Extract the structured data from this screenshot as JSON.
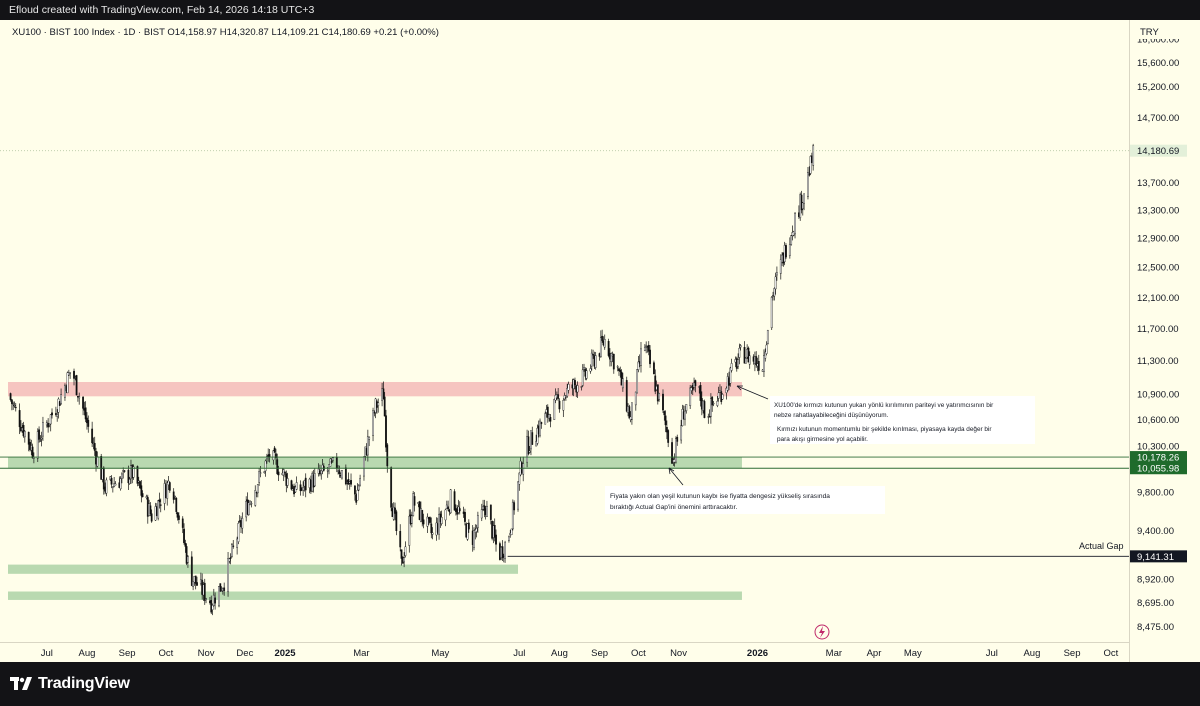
{
  "header": {
    "caption": "Efloud created with TradingView.com, Feb 14, 2026 14:18 UTC+3"
  },
  "footer": {
    "brand": "TradingView"
  },
  "legend": {
    "ohlc_text": "XU100 · BIST 100 Index · 1D · BIST  O14,158.97  H14,320.87  L14,109.21  C14,180.69  +0.21 (+0.00%)"
  },
  "currency": "TRY",
  "colors": {
    "background": "#fffeea",
    "candle": "#111111",
    "red_zone": "#f6c5c0",
    "green_zone": "#b9d9b0",
    "green_label": "#1f6b2c",
    "price_label": "#e3f0d9"
  },
  "annotations": {
    "red_note_1": "XU100'de kırmızı kutunun yukarı yönlü kırılımının pariteyi ve yatırımcısının bir",
    "red_note_2": "nebze rahatlayabileceğini düşünüyorum.",
    "red_note_3": "Kırmızı kutunun momentumlu bir şekilde kırılması, piyasaya kayda değer bir",
    "red_note_4": "para akışı girmesine yol açabilir.",
    "green_note_1": "Fiyata yakın olan yeşil kutunun kaybı ise fiyatta dengesiz yükseliş sırasında",
    "green_note_2": "bıraktığı Actual Gap'ini önemini arttıracaktır.",
    "gap_label": "Actual Gap"
  },
  "chart_data": {
    "type": "candlestick",
    "symbol": "XU100",
    "title": "XU100 · BIST 100 Index · 1D · BIST",
    "ohlc": {
      "open": 14158.97,
      "high": 14320.87,
      "low": 14109.21,
      "close": 14180.69,
      "change": "+0.21 (+0.00%)"
    },
    "y_axis_ticks": [
      "16,000.00",
      "15,600.00",
      "15,200.00",
      "14,700.00",
      "14,180.69",
      "13,700.00",
      "13,300.00",
      "12,900.00",
      "12,500.00",
      "12,100.00",
      "11,700.00",
      "11,300.00",
      "10,900.00",
      "10,600.00",
      "10,300.00",
      "10,178.26",
      "10,055.98",
      "9,800.00",
      "9,400.00",
      "9,141.31",
      "8,920.00",
      "8,695.00",
      "8,475.00"
    ],
    "y_axis_scale": "log",
    "y_range": [
      8350,
      16300
    ],
    "x_axis_ticks": [
      "Jul",
      "Aug",
      "Sep",
      "Oct",
      "Nov",
      "Dec",
      "2025",
      "Mar",
      "May",
      "Jul",
      "Aug",
      "Sep",
      "Oct",
      "Nov",
      "2026",
      "Mar",
      "Apr",
      "May",
      "Jul",
      "Aug",
      "Sep",
      "Oct"
    ],
    "x_range": [
      "2024-06-01",
      "2026-10-15"
    ],
    "price_line": 14180.69,
    "levels": [
      {
        "name": "green_box_top",
        "value": 10178.26
      },
      {
        "name": "green_box_bottom",
        "value": 10055.98
      },
      {
        "name": "actual_gap",
        "value": 9141.31
      }
    ],
    "zones": [
      {
        "name": "red",
        "from": "2024-06-01",
        "to": "2025-12-20",
        "low": 10870,
        "high": 11040
      },
      {
        "name": "green_near",
        "from": "2024-06-01",
        "to": "2025-12-20",
        "low": 10055.98,
        "high": 10178.26
      },
      {
        "name": "green_low_1",
        "from": "2024-06-01",
        "to": "2025-06-30",
        "low": 8970,
        "high": 9060
      },
      {
        "name": "green_low_2",
        "from": "2024-06-01",
        "to": "2025-12-20",
        "low": 8720,
        "high": 8800
      }
    ],
    "close_path": [
      [
        "2024-06-01",
        10900
      ],
      [
        "2024-06-20",
        10250
      ],
      [
        "2024-07-10",
        10800
      ],
      [
        "2024-07-20",
        11200
      ],
      [
        "2024-08-05",
        10350
      ],
      [
        "2024-08-15",
        9850
      ],
      [
        "2024-09-05",
        10000
      ],
      [
        "2024-09-20",
        9550
      ],
      [
        "2024-10-05",
        9950
      ],
      [
        "2024-10-20",
        8950
      ],
      [
        "2024-11-05",
        8700
      ],
      [
        "2024-11-15",
        8900
      ],
      [
        "2024-12-01",
        9600
      ],
      [
        "2024-12-20",
        10200
      ],
      [
        "2025-01-10",
        9800
      ],
      [
        "2025-01-25",
        9950
      ],
      [
        "2025-02-10",
        10100
      ],
      [
        "2025-02-25",
        9750
      ],
      [
        "2025-03-12",
        10750
      ],
      [
        "2025-03-18",
        10900
      ],
      [
        "2025-03-22",
        9900
      ],
      [
        "2025-04-01",
        9050
      ],
      [
        "2025-04-10",
        9700
      ],
      [
        "2025-04-25",
        9350
      ],
      [
        "2025-05-10",
        9750
      ],
      [
        "2025-05-25",
        9300
      ],
      [
        "2025-06-05",
        9650
      ],
      [
        "2025-06-15",
        9150
      ],
      [
        "2025-06-22",
        9300
      ],
      [
        "2025-07-05",
        10250
      ],
      [
        "2025-07-20",
        10600
      ],
      [
        "2025-08-05",
        10900
      ],
      [
        "2025-08-20",
        11100
      ],
      [
        "2025-09-05",
        11550
      ],
      [
        "2025-09-15",
        11200
      ],
      [
        "2025-09-25",
        10600
      ],
      [
        "2025-10-05",
        11550
      ],
      [
        "2025-10-20",
        10650
      ],
      [
        "2025-10-28",
        10150
      ],
      [
        "2025-11-05",
        10700
      ],
      [
        "2025-11-15",
        11000
      ],
      [
        "2025-11-22",
        10650
      ],
      [
        "2025-12-05",
        10950
      ],
      [
        "2025-12-20",
        11400
      ],
      [
        "2026-01-05",
        11250
      ],
      [
        "2026-01-12",
        12100
      ],
      [
        "2026-01-25",
        12900
      ],
      [
        "2026-02-05",
        13500
      ],
      [
        "2026-02-14",
        14180.69
      ]
    ]
  }
}
